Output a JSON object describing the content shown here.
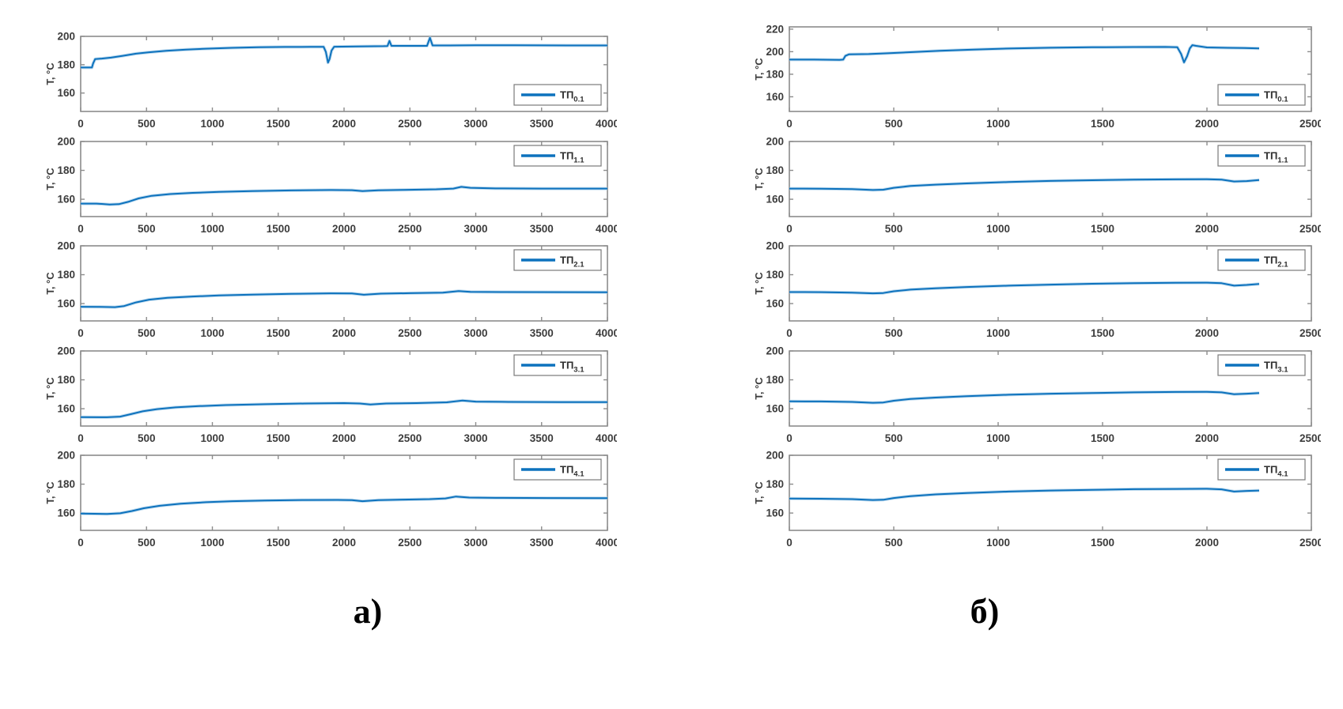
{
  "figure_labels": {
    "left": "а)",
    "right": "б)"
  },
  "style": {
    "line_color": "#0d72bd",
    "line_halo_color": "#a9cfe9",
    "axis_color": "#8c8c8c",
    "tick_text_color": "#3c3c3c",
    "legend_border_color": "#7a7a7a",
    "legend_text_color": "#2e2e2e",
    "background": "#ffffff"
  },
  "chart_data": [
    {
      "id": "left-1",
      "type": "line",
      "column": "left",
      "row": 0,
      "ylabel": "T, °C",
      "xlabel": "",
      "legend": {
        "label": "ТП",
        "subscript": "0.1",
        "position": "bottom-right"
      },
      "xlim": [
        0,
        4000
      ],
      "xticks": [
        0,
        500,
        1000,
        1500,
        2000,
        2500,
        3000,
        3500,
        4000
      ],
      "ylim": [
        147,
        200
      ],
      "yticks": [
        160,
        180,
        200
      ],
      "points": [
        [
          0,
          178
        ],
        [
          85,
          178
        ],
        [
          95,
          181
        ],
        [
          110,
          184
        ],
        [
          160,
          184.3
        ],
        [
          230,
          185
        ],
        [
          320,
          186.3
        ],
        [
          420,
          187.8
        ],
        [
          520,
          188.8
        ],
        [
          650,
          189.8
        ],
        [
          800,
          190.7
        ],
        [
          950,
          191.3
        ],
        [
          1150,
          191.9
        ],
        [
          1350,
          192.3
        ],
        [
          1550,
          192.5
        ],
        [
          1750,
          192.6
        ],
        [
          1845,
          192.6
        ],
        [
          1862,
          189
        ],
        [
          1878,
          181.5
        ],
        [
          1890,
          184
        ],
        [
          1905,
          190
        ],
        [
          1925,
          192.7
        ],
        [
          2100,
          192.9
        ],
        [
          2300,
          193.1
        ],
        [
          2330,
          193.2
        ],
        [
          2345,
          196.8
        ],
        [
          2360,
          193.3
        ],
        [
          2500,
          193.3
        ],
        [
          2630,
          193.3
        ],
        [
          2652,
          199
        ],
        [
          2672,
          193.6
        ],
        [
          2800,
          193.6
        ],
        [
          3000,
          193.7
        ],
        [
          3300,
          193.7
        ],
        [
          3700,
          193.6
        ],
        [
          4000,
          193.6
        ]
      ]
    },
    {
      "id": "left-2",
      "type": "line",
      "column": "left",
      "row": 1,
      "ylabel": "T, °C",
      "xlabel": "",
      "legend": {
        "label": "ТП",
        "subscript": "1.1",
        "position": "top-right"
      },
      "xlim": [
        0,
        4000
      ],
      "xticks": [
        0,
        500,
        1000,
        1500,
        2000,
        2500,
        3000,
        3500,
        4000
      ],
      "ylim": [
        148,
        200
      ],
      "yticks": [
        160,
        180,
        200
      ],
      "points": [
        [
          0,
          157
        ],
        [
          120,
          157
        ],
        [
          220,
          156.4
        ],
        [
          290,
          156.6
        ],
        [
          360,
          158.2
        ],
        [
          440,
          160.6
        ],
        [
          540,
          162.4
        ],
        [
          680,
          163.6
        ],
        [
          850,
          164.4
        ],
        [
          1050,
          165.1
        ],
        [
          1300,
          165.7
        ],
        [
          1600,
          166.1
        ],
        [
          1900,
          166.4
        ],
        [
          2060,
          166.3
        ],
        [
          2140,
          165.6
        ],
        [
          2260,
          166.2
        ],
        [
          2450,
          166.5
        ],
        [
          2700,
          166.9
        ],
        [
          2830,
          167.4
        ],
        [
          2890,
          168.6
        ],
        [
          2960,
          167.9
        ],
        [
          3150,
          167.5
        ],
        [
          3500,
          167.4
        ],
        [
          4000,
          167.4
        ]
      ]
    },
    {
      "id": "left-3",
      "type": "line",
      "column": "left",
      "row": 2,
      "ylabel": "T, °C",
      "xlabel": "",
      "legend": {
        "label": "ТП",
        "subscript": "2.1",
        "position": "top-right"
      },
      "xlim": [
        0,
        4000
      ],
      "xticks": [
        0,
        500,
        1000,
        1500,
        2000,
        2500,
        3000,
        3500,
        4000
      ],
      "ylim": [
        148,
        200
      ],
      "yticks": [
        160,
        180,
        200
      ],
      "points": [
        [
          0,
          157.8
        ],
        [
          150,
          157.7
        ],
        [
          260,
          157.5
        ],
        [
          330,
          158.3
        ],
        [
          420,
          160.8
        ],
        [
          520,
          162.7
        ],
        [
          660,
          164
        ],
        [
          850,
          164.9
        ],
        [
          1050,
          165.6
        ],
        [
          1300,
          166.2
        ],
        [
          1600,
          166.7
        ],
        [
          1900,
          167.1
        ],
        [
          2060,
          167
        ],
        [
          2150,
          166.1
        ],
        [
          2280,
          166.9
        ],
        [
          2500,
          167.2
        ],
        [
          2750,
          167.6
        ],
        [
          2870,
          168.7
        ],
        [
          2960,
          168.1
        ],
        [
          3200,
          168
        ],
        [
          3600,
          167.9
        ],
        [
          4000,
          167.8
        ]
      ]
    },
    {
      "id": "left-4",
      "type": "line",
      "column": "left",
      "row": 3,
      "ylabel": "T, °C",
      "xlabel": "",
      "legend": {
        "label": "ТП",
        "subscript": "3.1",
        "position": "top-right"
      },
      "xlim": [
        0,
        4000
      ],
      "xticks": [
        0,
        500,
        1000,
        1500,
        2000,
        2500,
        3000,
        3500,
        4000
      ],
      "ylim": [
        148,
        200
      ],
      "yticks": [
        160,
        180,
        200
      ],
      "points": [
        [
          0,
          154.2
        ],
        [
          200,
          154.1
        ],
        [
          300,
          154.5
        ],
        [
          380,
          156.2
        ],
        [
          470,
          158.2
        ],
        [
          580,
          159.7
        ],
        [
          720,
          160.9
        ],
        [
          900,
          161.8
        ],
        [
          1100,
          162.5
        ],
        [
          1400,
          163.1
        ],
        [
          1700,
          163.6
        ],
        [
          2000,
          163.9
        ],
        [
          2120,
          163.6
        ],
        [
          2200,
          162.9
        ],
        [
          2320,
          163.6
        ],
        [
          2550,
          163.9
        ],
        [
          2780,
          164.4
        ],
        [
          2900,
          165.7
        ],
        [
          3000,
          164.9
        ],
        [
          3250,
          164.7
        ],
        [
          3650,
          164.6
        ],
        [
          4000,
          164.6
        ]
      ]
    },
    {
      "id": "left-5",
      "type": "line",
      "column": "left",
      "row": 4,
      "ylabel": "T, °C",
      "xlabel": "",
      "legend": {
        "label": "ТП",
        "subscript": "4.1",
        "position": "top-right"
      },
      "xlim": [
        0,
        4000
      ],
      "xticks": [
        0,
        500,
        1000,
        1500,
        2000,
        2500,
        3000,
        3500,
        4000
      ],
      "ylim": [
        148,
        200
      ],
      "yticks": [
        160,
        180,
        200
      ],
      "points": [
        [
          0,
          159.6
        ],
        [
          200,
          159.4
        ],
        [
          300,
          159.8
        ],
        [
          390,
          161.4
        ],
        [
          480,
          163.3
        ],
        [
          600,
          165
        ],
        [
          760,
          166.5
        ],
        [
          950,
          167.5
        ],
        [
          1150,
          168.2
        ],
        [
          1400,
          168.7
        ],
        [
          1700,
          169
        ],
        [
          1950,
          169.1
        ],
        [
          2060,
          168.9
        ],
        [
          2140,
          168.2
        ],
        [
          2260,
          168.9
        ],
        [
          2450,
          169.3
        ],
        [
          2650,
          169.6
        ],
        [
          2770,
          170.1
        ],
        [
          2850,
          171.4
        ],
        [
          2950,
          170.7
        ],
        [
          3150,
          170.5
        ],
        [
          3550,
          170.4
        ],
        [
          4000,
          170.3
        ]
      ]
    },
    {
      "id": "right-1",
      "type": "line",
      "column": "right",
      "row": 0,
      "ylabel": "T, °C",
      "xlabel": "",
      "legend": {
        "label": "ТП",
        "subscript": "0.1",
        "position": "bottom-right"
      },
      "xlim": [
        0,
        2500
      ],
      "xticks": [
        0,
        500,
        1000,
        1500,
        2000,
        2500
      ],
      "ylim": [
        147,
        222
      ],
      "yticks": [
        160,
        180,
        200,
        220
      ],
      "points": [
        [
          0,
          193
        ],
        [
          120,
          193
        ],
        [
          240,
          192.8
        ],
        [
          258,
          193
        ],
        [
          268,
          196.3
        ],
        [
          285,
          197.6
        ],
        [
          380,
          197.9
        ],
        [
          470,
          198.6
        ],
        [
          580,
          199.6
        ],
        [
          720,
          200.8
        ],
        [
          880,
          201.9
        ],
        [
          1050,
          202.8
        ],
        [
          1250,
          203.5
        ],
        [
          1450,
          203.9
        ],
        [
          1650,
          204.1
        ],
        [
          1800,
          204.2
        ],
        [
          1858,
          204
        ],
        [
          1876,
          198
        ],
        [
          1890,
          190.5
        ],
        [
          1905,
          196
        ],
        [
          1918,
          203
        ],
        [
          1930,
          205.8
        ],
        [
          1948,
          205.2
        ],
        [
          2000,
          203.8
        ],
        [
          2100,
          203.4
        ],
        [
          2180,
          203.2
        ],
        [
          2250,
          202.9
        ]
      ]
    },
    {
      "id": "right-2",
      "type": "line",
      "column": "right",
      "row": 1,
      "ylabel": "T, °C",
      "xlabel": "",
      "legend": {
        "label": "ТП",
        "subscript": "1.1",
        "position": "top-right"
      },
      "xlim": [
        0,
        2500
      ],
      "xticks": [
        0,
        500,
        1000,
        1500,
        2000,
        2500
      ],
      "ylim": [
        148,
        200
      ],
      "yticks": [
        160,
        180,
        200
      ],
      "points": [
        [
          0,
          167.4
        ],
        [
          150,
          167.3
        ],
        [
          300,
          167
        ],
        [
          400,
          166.4
        ],
        [
          450,
          166.6
        ],
        [
          500,
          167.9
        ],
        [
          580,
          169.2
        ],
        [
          700,
          170.1
        ],
        [
          850,
          171
        ],
        [
          1050,
          171.9
        ],
        [
          1250,
          172.7
        ],
        [
          1450,
          173.2
        ],
        [
          1650,
          173.6
        ],
        [
          1850,
          173.8
        ],
        [
          2000,
          173.9
        ],
        [
          2070,
          173.6
        ],
        [
          2130,
          172.3
        ],
        [
          2190,
          172.6
        ],
        [
          2250,
          173.3
        ]
      ]
    },
    {
      "id": "right-3",
      "type": "line",
      "column": "right",
      "row": 2,
      "ylabel": "T, °C",
      "xlabel": "",
      "legend": {
        "label": "ТП",
        "subscript": "2.1",
        "position": "top-right"
      },
      "xlim": [
        0,
        2500
      ],
      "xticks": [
        0,
        500,
        1000,
        1500,
        2000,
        2500
      ],
      "ylim": [
        148,
        200
      ],
      "yticks": [
        160,
        180,
        200
      ],
      "points": [
        [
          0,
          168
        ],
        [
          150,
          167.9
        ],
        [
          300,
          167.6
        ],
        [
          400,
          167.1
        ],
        [
          450,
          167.3
        ],
        [
          500,
          168.5
        ],
        [
          580,
          169.7
        ],
        [
          700,
          170.6
        ],
        [
          850,
          171.5
        ],
        [
          1050,
          172.4
        ],
        [
          1250,
          173.1
        ],
        [
          1450,
          173.7
        ],
        [
          1650,
          174.1
        ],
        [
          1850,
          174.4
        ],
        [
          2000,
          174.5
        ],
        [
          2070,
          174.1
        ],
        [
          2130,
          172.4
        ],
        [
          2190,
          172.9
        ],
        [
          2250,
          173.6
        ]
      ]
    },
    {
      "id": "right-4",
      "type": "line",
      "column": "right",
      "row": 3,
      "ylabel": "T, °C",
      "xlabel": "",
      "legend": {
        "label": "ТП",
        "subscript": "3.1",
        "position": "top-right"
      },
      "xlim": [
        0,
        2500
      ],
      "xticks": [
        0,
        500,
        1000,
        1500,
        2000,
        2500
      ],
      "ylim": [
        148,
        200
      ],
      "yticks": [
        160,
        180,
        200
      ],
      "points": [
        [
          0,
          165.1
        ],
        [
          150,
          165
        ],
        [
          300,
          164.7
        ],
        [
          400,
          164.1
        ],
        [
          450,
          164.3
        ],
        [
          500,
          165.5
        ],
        [
          580,
          166.7
        ],
        [
          700,
          167.7
        ],
        [
          850,
          168.7
        ],
        [
          1050,
          169.7
        ],
        [
          1250,
          170.4
        ],
        [
          1450,
          170.9
        ],
        [
          1650,
          171.3
        ],
        [
          1850,
          171.6
        ],
        [
          2000,
          171.7
        ],
        [
          2070,
          171.3
        ],
        [
          2130,
          170
        ],
        [
          2190,
          170.4
        ],
        [
          2250,
          170.9
        ]
      ]
    },
    {
      "id": "right-5",
      "type": "line",
      "column": "right",
      "row": 4,
      "ylabel": "T, °C",
      "xlabel": "",
      "legend": {
        "label": "ТП",
        "subscript": "4.1",
        "position": "top-right"
      },
      "xlim": [
        0,
        2500
      ],
      "xticks": [
        0,
        500,
        1000,
        1500,
        2000,
        2500
      ],
      "ylim": [
        148,
        200
      ],
      "yticks": [
        160,
        180,
        200
      ],
      "points": [
        [
          0,
          170
        ],
        [
          150,
          169.9
        ],
        [
          300,
          169.6
        ],
        [
          400,
          169
        ],
        [
          450,
          169.2
        ],
        [
          500,
          170.4
        ],
        [
          580,
          171.7
        ],
        [
          700,
          172.9
        ],
        [
          850,
          173.9
        ],
        [
          1050,
          174.9
        ],
        [
          1250,
          175.6
        ],
        [
          1450,
          176.1
        ],
        [
          1650,
          176.5
        ],
        [
          1850,
          176.7
        ],
        [
          2000,
          176.8
        ],
        [
          2070,
          176.4
        ],
        [
          2130,
          174.9
        ],
        [
          2190,
          175.3
        ],
        [
          2250,
          175.6
        ]
      ]
    }
  ]
}
